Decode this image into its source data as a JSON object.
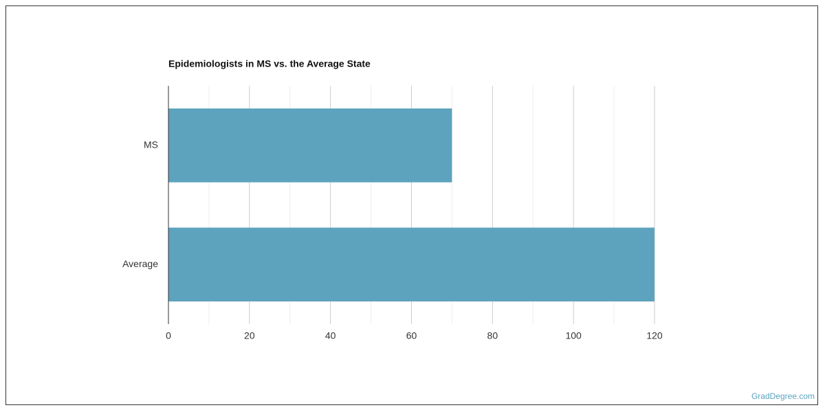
{
  "chart_data": {
    "type": "hbar",
    "title": "Epidemiologists in MS vs. the Average State",
    "categories": [
      "MS",
      "Average"
    ],
    "values": [
      70,
      120
    ],
    "color": "#5ea3be",
    "xlim": [
      0,
      120
    ],
    "xticks": [
      0,
      20,
      40,
      60,
      80,
      100,
      120
    ],
    "minor_grid": [
      10,
      30,
      50,
      70,
      90,
      110
    ],
    "grid": true
  },
  "watermark": "GradDegree.com"
}
